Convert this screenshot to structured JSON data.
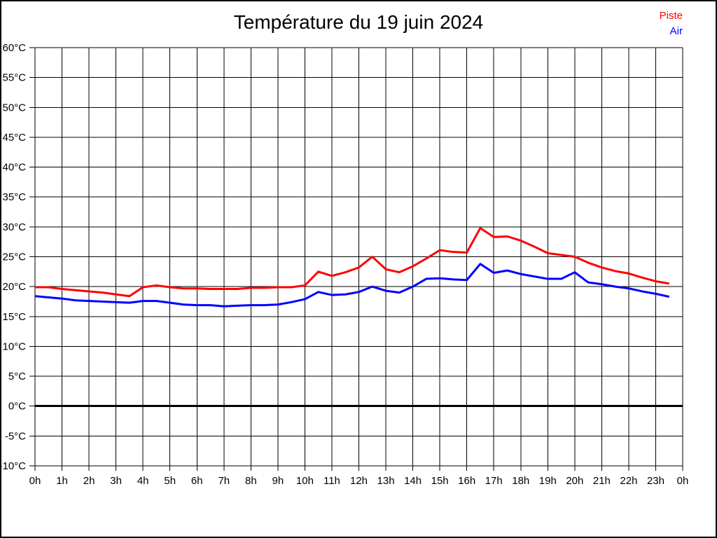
{
  "title": "Température du 19 juin 2024",
  "legend": [
    {
      "label": "Piste",
      "color": "#ff0000"
    },
    {
      "label": "Air",
      "color": "#0000ff"
    }
  ],
  "colors": {
    "grid": "#000000",
    "zero_line": "#000000",
    "background": "#ffffff",
    "text": "#000000"
  },
  "chart_data": {
    "type": "line",
    "title": "Température du 19 juin 2024",
    "xlabel": "",
    "ylabel": "",
    "grid": true,
    "legend_position": "top-right",
    "xlim": [
      0,
      24
    ],
    "ylim": [
      -10,
      60
    ],
    "x_step": 1,
    "y_step": 5,
    "x_ticks": [
      "0h",
      "1h",
      "2h",
      "3h",
      "4h",
      "5h",
      "6h",
      "7h",
      "8h",
      "9h",
      "10h",
      "11h",
      "12h",
      "13h",
      "14h",
      "15h",
      "16h",
      "17h",
      "18h",
      "19h",
      "20h",
      "21h",
      "22h",
      "23h",
      "0h"
    ],
    "y_ticks": [
      "60°C",
      "55°C",
      "50°C",
      "45°C",
      "40°C",
      "35°C",
      "30°C",
      "25°C",
      "20°C",
      "15°C",
      "10°C",
      "5°C",
      "0°C",
      "-5°C",
      "-10°C"
    ],
    "zero_line": {
      "value": 0,
      "width": 3
    },
    "x": [
      0,
      0.5,
      1,
      1.5,
      2,
      2.5,
      3,
      3.5,
      4,
      4.5,
      5,
      5.5,
      6,
      6.5,
      7,
      7.5,
      8,
      8.5,
      9,
      9.5,
      10,
      10.5,
      11,
      11.5,
      12,
      12.5,
      13,
      13.5,
      14,
      14.5,
      15,
      15.5,
      16,
      16.5,
      17,
      17.5,
      18,
      18.5,
      19,
      19.5,
      20,
      20.5,
      21,
      21.5,
      22,
      22.5,
      23,
      23.5
    ],
    "series": [
      {
        "name": "Piste",
        "color": "#ff0000",
        "values": [
          19.9,
          19.9,
          19.6,
          19.4,
          19.2,
          19.0,
          18.7,
          18.4,
          19.9,
          20.2,
          19.9,
          19.7,
          19.7,
          19.6,
          19.6,
          19.6,
          19.8,
          19.8,
          19.9,
          19.9,
          20.2,
          22.5,
          21.8,
          22.4,
          23.2,
          25.0,
          22.9,
          22.4,
          23.4,
          24.7,
          26.1,
          25.8,
          25.7,
          29.8,
          28.3,
          28.4,
          27.7,
          26.7,
          25.6,
          25.3,
          25.0,
          24.0,
          23.2,
          22.6,
          22.2,
          21.5,
          20.9,
          20.5
        ]
      },
      {
        "name": "Air",
        "color": "#0000ff",
        "values": [
          18.4,
          18.2,
          18.0,
          17.7,
          17.6,
          17.5,
          17.4,
          17.3,
          17.6,
          17.6,
          17.3,
          17.0,
          16.9,
          16.9,
          16.7,
          16.8,
          16.9,
          16.9,
          17.0,
          17.4,
          17.9,
          19.1,
          18.6,
          18.7,
          19.1,
          20.0,
          19.3,
          19.0,
          20.0,
          21.3,
          21.4,
          21.2,
          21.1,
          23.8,
          22.3,
          22.7,
          22.1,
          21.7,
          21.3,
          21.3,
          22.4,
          20.7,
          20.4,
          20.0,
          19.7,
          19.2,
          18.8,
          18.3
        ]
      }
    ]
  }
}
